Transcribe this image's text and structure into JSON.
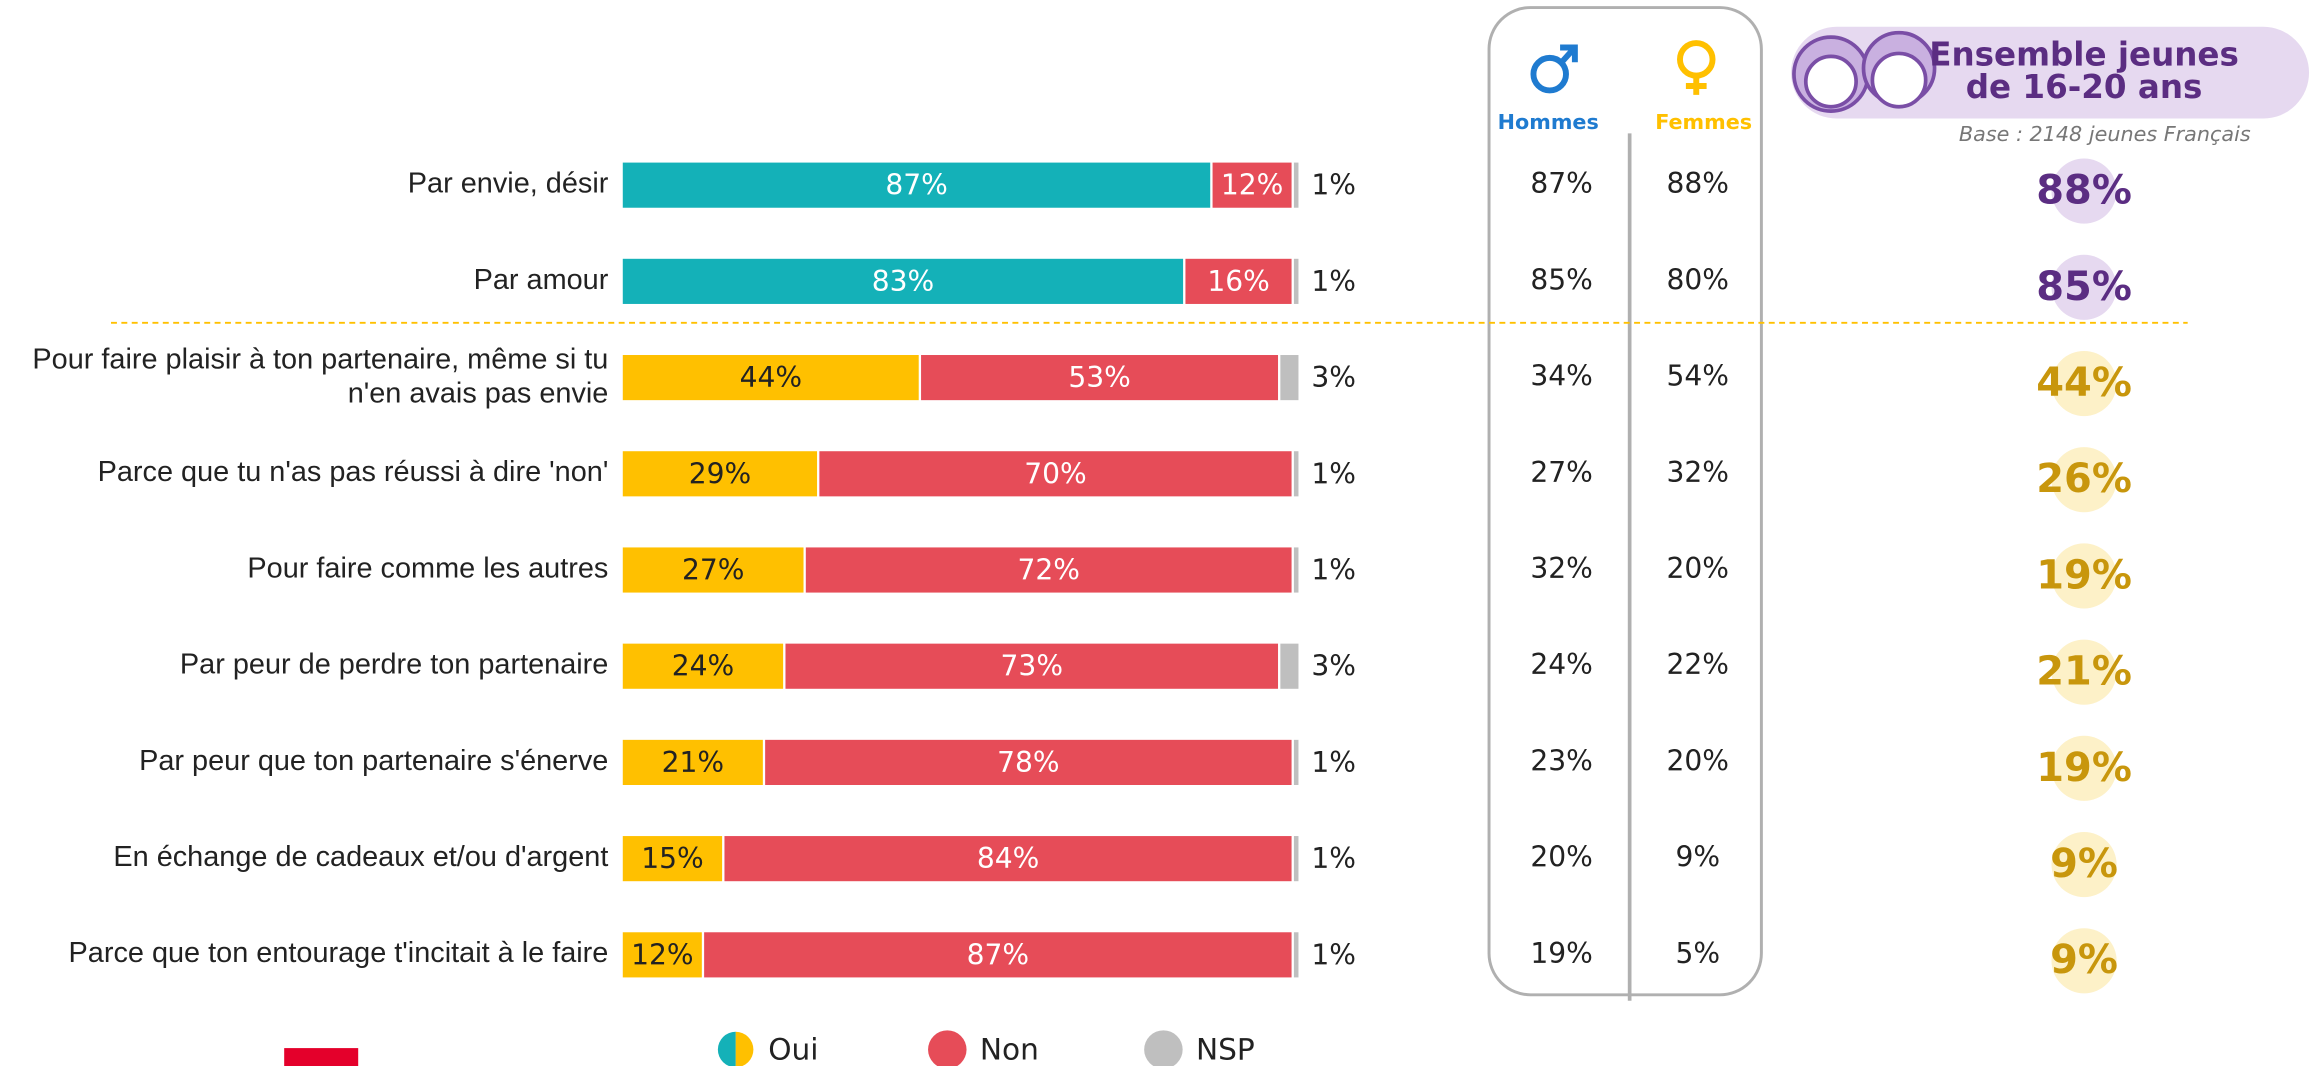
{
  "chart_data": {
    "type": "stacked-bar",
    "categories": [
      "Par envie, désir",
      "Par amour",
      "Pour faire plaisir à ton partenaire, même si tu n'en avais pas envie",
      "Parce que tu n'as pas réussi à dire 'non'",
      "Pour faire comme les autres",
      "Par peur de perdre ton partenaire",
      "Par peur que ton partenaire s'énerve",
      "En échange de cadeaux et/ou d'argent",
      "Parce que ton entourage t'incitait à le faire"
    ],
    "series": [
      {
        "name": "Oui",
        "colors": [
          "#14b1b8",
          "#14b1b8",
          "#ffc000",
          "#ffc000",
          "#ffc000",
          "#ffc000",
          "#ffc000",
          "#ffc000",
          "#ffc000"
        ],
        "values": [
          87,
          83,
          44,
          29,
          27,
          24,
          21,
          15,
          12
        ],
        "value_labels": [
          "87%",
          "83%",
          "44%",
          "29%",
          "27%",
          "24%",
          "21%",
          "15%",
          "12%"
        ]
      },
      {
        "name": "Non",
        "color": "#e64c58",
        "values": [
          12,
          16,
          53,
          70,
          72,
          73,
          78,
          84,
          87
        ],
        "value_labels": [
          "12%",
          "16%",
          "53%",
          "70%",
          "72%",
          "73%",
          "78%",
          "84%",
          "87%"
        ]
      },
      {
        "name": "NSP",
        "color": "#bfbfbf",
        "values": [
          1,
          1,
          3,
          1,
          1,
          3,
          1,
          1,
          1
        ],
        "value_labels": [
          "1%",
          "1%",
          "3%",
          "1%",
          "1%",
          "3%",
          "1%",
          "1%",
          "1%"
        ]
      }
    ]
  },
  "table": {
    "hommes": "Hommes",
    "femmes": "Femmes",
    "ensemble": [
      "Ensemble jeunes",
      "de 16-20 ans"
    ],
    "base": "Base : 2148 jeunes Français",
    "ensemble_colors": [
      "#5b2d82",
      "#5b2d82",
      "#c8960c",
      "#c8960c",
      "#c8960c",
      "#c8960c",
      "#c8960c",
      "#c8960c",
      "#c8960c"
    ],
    "rows": [
      [
        "87%",
        "88%",
        "88%"
      ],
      [
        "85%",
        "80%",
        "85%"
      ],
      [
        "34%",
        "54%",
        "44%"
      ],
      [
        "27%",
        "32%",
        "26%"
      ],
      [
        "32%",
        "20%",
        "19%"
      ],
      [
        "24%",
        "22%",
        "21%"
      ],
      [
        "23%",
        "20%",
        "19%"
      ],
      [
        "20%",
        "9%",
        "9%"
      ],
      [
        "19%",
        "5%",
        "9%"
      ]
    ]
  }
}
